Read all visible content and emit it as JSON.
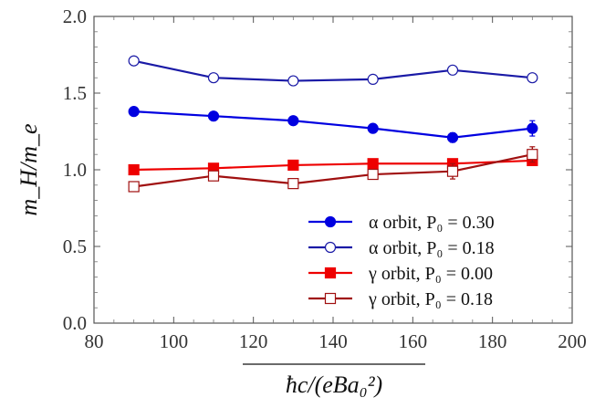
{
  "chart_data": {
    "type": "line",
    "xlim": [
      80,
      200
    ],
    "ylim": [
      0.0,
      2.0
    ],
    "x_ticks": [
      80,
      100,
      120,
      140,
      160,
      180,
      200
    ],
    "y_ticks": [
      "0.0",
      "0.5",
      "1.0",
      "1.5",
      "2.0"
    ],
    "xlabel": "ħc/(eBa₀²)",
    "ylabel": "m_H/m_e",
    "grid": false,
    "legend_position": "bottom-right",
    "x": [
      90,
      110,
      130,
      150,
      170,
      190
    ],
    "series": [
      {
        "name": "α orbit, P₀ = 0.30",
        "color": "#0000e0",
        "marker": "filled-circle",
        "values": [
          1.38,
          1.35,
          1.32,
          1.27,
          1.21,
          1.27
        ],
        "errors": [
          0.02,
          0.02,
          0.02,
          0.02,
          0.03,
          0.05
        ]
      },
      {
        "name": "α orbit, P₀ = 0.18",
        "color": "#1a1aa6",
        "marker": "open-circle",
        "values": [
          1.71,
          1.6,
          1.58,
          1.59,
          1.65,
          1.6
        ],
        "errors": [
          0.02,
          0.02,
          0.02,
          0.02,
          0.02,
          0.02
        ]
      },
      {
        "name": "γ orbit, P₀ = 0.00",
        "color": "#ee0000",
        "marker": "filled-square",
        "values": [
          1.0,
          1.01,
          1.03,
          1.04,
          1.04,
          1.06
        ],
        "errors": [
          0.01,
          0.01,
          0.01,
          0.02,
          0.03,
          0.03
        ]
      },
      {
        "name": "γ orbit, P₀ = 0.18",
        "color": "#a01010",
        "marker": "open-square",
        "values": [
          0.89,
          0.96,
          0.91,
          0.97,
          0.99,
          1.1
        ],
        "errors": [
          0.02,
          0.01,
          0.02,
          0.02,
          0.05,
          0.05
        ]
      }
    ]
  }
}
